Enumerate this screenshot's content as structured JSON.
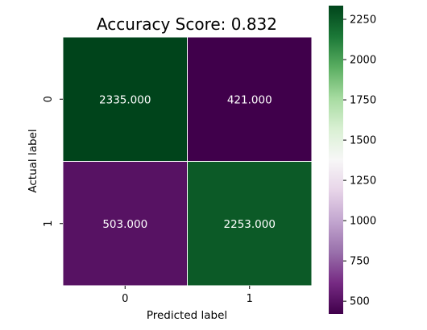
{
  "chart_data": {
    "type": "heatmap",
    "title": "Accuracy Score: 0.832",
    "xlabel": "Predicted label",
    "ylabel": "Actual label",
    "x_categories": [
      "0",
      "1"
    ],
    "y_categories": [
      "0",
      "1"
    ],
    "values": [
      [
        2335.0,
        421.0
      ],
      [
        503.0,
        2253.0
      ]
    ],
    "cell_labels": [
      [
        "2335.000",
        "421.000"
      ],
      [
        "503.000",
        "2253.000"
      ]
    ],
    "colormap": "PRGn",
    "colorbar": {
      "min": 421.0,
      "max": 2335.0,
      "ticks": [
        500,
        750,
        1000,
        1250,
        1500,
        1750,
        2000,
        2250
      ],
      "tick_labels": [
        "500",
        "750",
        "1000",
        "1250",
        "1500",
        "1750",
        "2000",
        "2250"
      ]
    },
    "grid": false
  }
}
